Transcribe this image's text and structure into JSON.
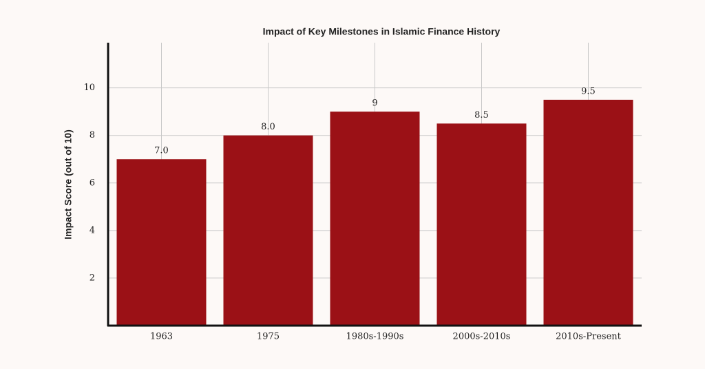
{
  "chart_data": {
    "type": "bar",
    "title": "Impact of Key Milestones in Islamic Finance History",
    "y_label": "Impact Score (out of 10)",
    "categories": [
      "1963",
      "1975",
      "1980s-1990s",
      "2000s-2010s",
      "2010s-Present"
    ],
    "values": [
      7,
      8,
      9,
      8.5,
      9.5
    ],
    "value_labels": [
      "7.0",
      "8.0",
      "9",
      "8.5",
      "9.5"
    ],
    "color": "#9b1116",
    "ylim": [
      0,
      11.9
    ],
    "yticks": [
      2,
      4,
      6,
      8,
      10
    ],
    "grid": true
  }
}
